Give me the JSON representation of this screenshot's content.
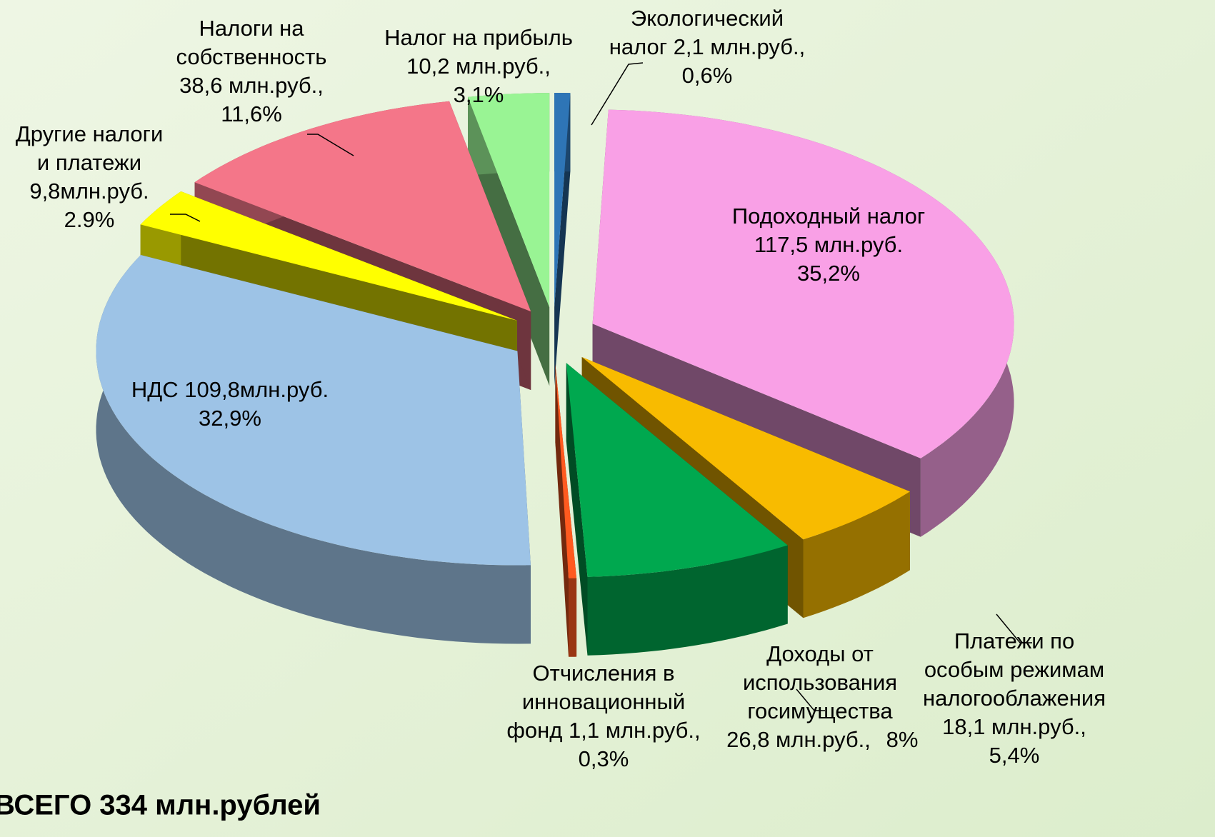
{
  "chart_data": {
    "type": "pie3d",
    "title": "ВСЕГО 334 млн.рублей",
    "labels": [
      [
        "Экологический",
        "налог 2,1 млн.руб.,"
      ],
      [
        "Подоходный налог",
        "117,5 млн.руб."
      ],
      [
        "Платежи по",
        "особым режимам",
        "налогооблажения",
        "18,1 млн.руб.,"
      ],
      [
        "Доходы от",
        "использования",
        "госимущества",
        "26,8 млн.руб.,"
      ],
      [
        "Отчисления в",
        "инновационный",
        "фонд 1,1 млн.руб.,"
      ],
      [
        "НДС 109,8млн.руб."
      ],
      [
        "Другие налоги",
        "и платежи",
        "9,8млн.руб."
      ],
      [
        "Налоги на",
        "собственность",
        "38,6 млн.руб.,"
      ],
      [
        "Налог на прибыль",
        "10,2 млн.руб.,"
      ]
    ],
    "values": [
      0.6,
      35.2,
      5.4,
      8,
      0.3,
      32.9,
      2.9,
      11.6,
      3.1
    ],
    "value_labels": [
      "0,6%",
      "35,2%",
      "5,4%",
      "8%",
      "0,3%",
      "32,9%",
      "2.9%",
      "11,6%",
      "3,1%"
    ],
    "colors": [
      "#2e75b6",
      "#f9a0e6",
      "#f8bb00",
      "#00a84f",
      "#ff5a1f",
      "#9dc3e6",
      "#ffff00",
      "#f47689",
      "#99f494"
    ]
  }
}
